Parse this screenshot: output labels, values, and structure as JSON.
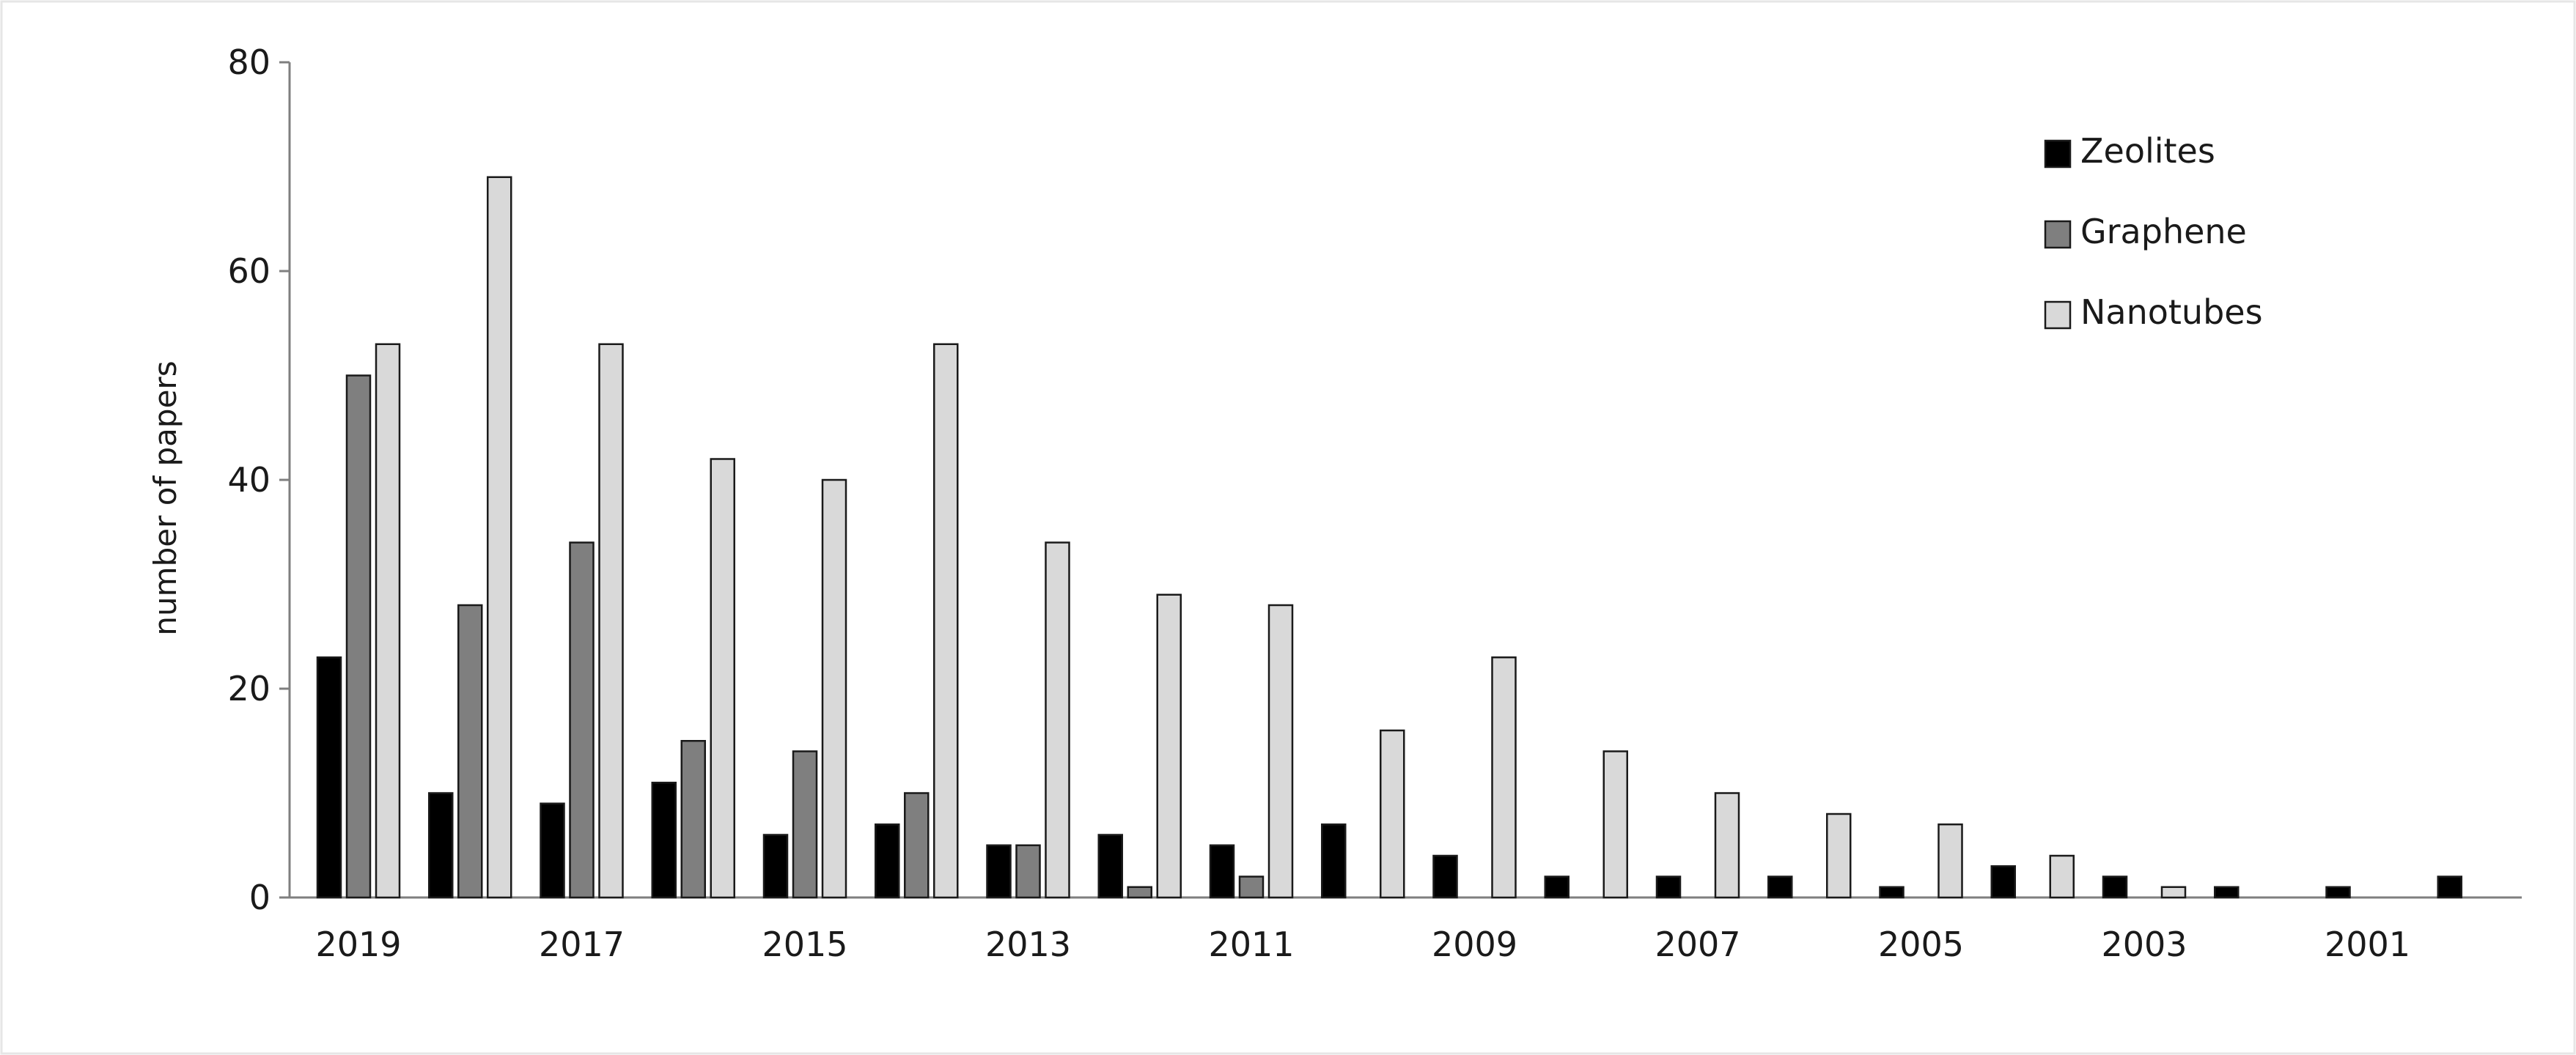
{
  "chart_data": {
    "type": "bar",
    "ylabel": "number of papers",
    "xlabel": "",
    "ylim": [
      0,
      80
    ],
    "yticks": [
      0,
      20,
      40,
      60,
      80
    ],
    "categories": [
      "2019",
      "2018",
      "2017",
      "2016",
      "2015",
      "2014",
      "2013",
      "2012",
      "2011",
      "2010",
      "2009",
      "2008",
      "2007",
      "2006",
      "2005",
      "2004",
      "2003",
      "2002",
      "2001",
      "2000"
    ],
    "x_tick_labels": [
      "2019",
      "2017",
      "2015",
      "2013",
      "2011",
      "2009",
      "2007",
      "2005",
      "2003",
      "2001"
    ],
    "series": [
      {
        "name": "Zeolites",
        "color": "#000000",
        "values": [
          23,
          10,
          9,
          11,
          6,
          7,
          5,
          6,
          5,
          7,
          4,
          2,
          2,
          2,
          1,
          3,
          2,
          1,
          1,
          2
        ]
      },
      {
        "name": "Graphene",
        "color": "#7f7f7f",
        "values": [
          50,
          28,
          34,
          15,
          14,
          10,
          5,
          1,
          2,
          0,
          0,
          0,
          0,
          0,
          0,
          0,
          0,
          0,
          0,
          0
        ]
      },
      {
        "name": "Nanotubes",
        "color": "#d9d9d9",
        "values": [
          53,
          69,
          53,
          42,
          40,
          53,
          34,
          29,
          28,
          16,
          23,
          14,
          10,
          8,
          7,
          4,
          1,
          0,
          0,
          0
        ]
      }
    ],
    "legend_position": "top-right",
    "grid": false
  }
}
